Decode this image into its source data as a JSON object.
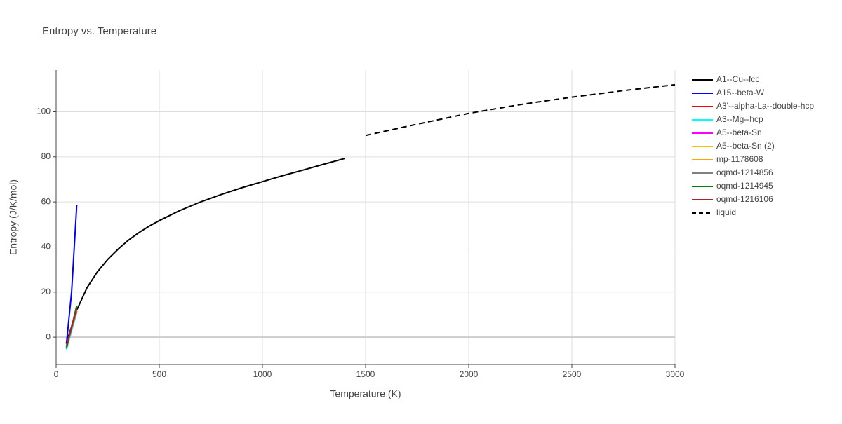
{
  "chart_data": {
    "type": "line",
    "title": "Entropy vs. Temperature",
    "x_label": "Temperature (K)",
    "y_label": "Entropy (J/K/mol)",
    "xlim": [
      0,
      3000
    ],
    "ylim": [
      -12.1,
      118.5
    ],
    "xticks": [
      0,
      500,
      1000,
      1500,
      2000,
      2500,
      3000
    ],
    "yticks": [
      0,
      20,
      40,
      60,
      80,
      100
    ],
    "grid": true,
    "legend": "right",
    "series": [
      {
        "name": "A1--Cu--fcc",
        "color": "#000000",
        "x": [
          50,
          100,
          150,
          200,
          250,
          300,
          350,
          400,
          450,
          500,
          600,
          700,
          800,
          900,
          1000,
          1100,
          1200,
          1300,
          1400
        ],
        "values": [
          -2.5,
          12,
          22,
          29,
          34.5,
          39,
          43,
          46.3,
          49.2,
          51.7,
          56.2,
          60,
          63.3,
          66.3,
          69,
          71.7,
          74.2,
          76.8,
          79.3
        ]
      },
      {
        "name": "A15--beta-W",
        "color": "#0000ff",
        "x": [
          50,
          75,
          100
        ],
        "values": [
          -3,
          20,
          58.5
        ]
      },
      {
        "name": "A3'--alpha-La--double-hcp",
        "color": "#ff0000",
        "x": [
          50,
          100
        ],
        "values": [
          -4,
          11.5
        ]
      },
      {
        "name": "A3--Mg--hcp",
        "color": "#00ffff",
        "x": [
          50,
          100
        ],
        "values": [
          -5.5,
          11
        ]
      },
      {
        "name": "A5--beta-Sn",
        "color": "#ff00ff",
        "x": [
          50,
          100
        ],
        "values": [
          -4.5,
          11.5
        ]
      },
      {
        "name": "A5--beta-Sn (2)",
        "color": "#ffbf00",
        "x": [
          50,
          100
        ],
        "values": [
          -4.5,
          12
        ]
      },
      {
        "name": "mp-1178608",
        "color": "#ffa500",
        "x": [
          50,
          100
        ],
        "values": [
          -4,
          12
        ]
      },
      {
        "name": "oqmd-1214856",
        "color": "#808080",
        "x": [
          50,
          100
        ],
        "values": [
          -4.5,
          12.5
        ]
      },
      {
        "name": "oqmd-1214945",
        "color": "#008000",
        "x": [
          50,
          100
        ],
        "values": [
          -5,
          14
        ]
      },
      {
        "name": "oqmd-1216106",
        "color": "#b22222",
        "x": [
          50,
          100
        ],
        "values": [
          -4,
          12.5
        ]
      },
      {
        "name": "liquid",
        "color": "#000000",
        "dash": "dash",
        "x": [
          1500,
          1750,
          2000,
          2250,
          2500,
          2750,
          3000
        ],
        "values": [
          89.5,
          94.5,
          99.3,
          103.2,
          106.5,
          109.4,
          112
        ]
      }
    ]
  }
}
